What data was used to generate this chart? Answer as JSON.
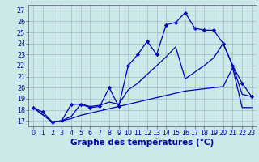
{
  "title": "Graphe des températures (°C)",
  "xlabel_hours": [
    0,
    1,
    2,
    3,
    4,
    5,
    6,
    7,
    8,
    9,
    10,
    11,
    12,
    13,
    14,
    15,
    16,
    17,
    18,
    19,
    20,
    21,
    22,
    23
  ],
  "ylim": [
    16.5,
    27.5
  ],
  "yticks": [
    17,
    18,
    19,
    20,
    21,
    22,
    23,
    24,
    25,
    26,
    27
  ],
  "line1_jagged": {
    "x": [
      0,
      1,
      2,
      3,
      4,
      5,
      6,
      7,
      8,
      9,
      10,
      11,
      12,
      13,
      14,
      15,
      16,
      17,
      18,
      19,
      20,
      21,
      22,
      23
    ],
    "y": [
      18.2,
      17.8,
      16.9,
      17.0,
      18.5,
      18.5,
      18.2,
      18.3,
      20.0,
      18.3,
      22.0,
      23.0,
      24.2,
      23.0,
      25.7,
      25.9,
      26.8,
      25.4,
      25.2,
      25.2,
      24.0,
      22.0,
      20.4,
      19.2
    ],
    "color": "#0000bb",
    "marker": "D",
    "markersize": 2.2,
    "linewidth": 0.9
  },
  "line2_diagonal": {
    "x": [
      0,
      2,
      3,
      4,
      5,
      6,
      7,
      8,
      9,
      10,
      11,
      12,
      13,
      14,
      15,
      16,
      17,
      18,
      19,
      20,
      21,
      22,
      23
    ],
    "y": [
      18.2,
      16.9,
      17.0,
      17.2,
      17.5,
      17.7,
      17.9,
      18.1,
      18.3,
      18.5,
      18.7,
      18.9,
      19.1,
      19.3,
      19.5,
      19.7,
      19.8,
      19.9,
      20.0,
      20.1,
      21.8,
      18.2,
      18.2
    ],
    "color": "#0000bb",
    "marker": null,
    "linewidth": 0.9
  },
  "line3_middle": {
    "x": [
      0,
      2,
      3,
      4,
      5,
      6,
      7,
      8,
      9,
      10,
      11,
      12,
      13,
      14,
      15,
      16,
      17,
      18,
      19,
      20,
      21,
      22,
      23
    ],
    "y": [
      18.2,
      16.9,
      17.0,
      17.4,
      18.5,
      18.3,
      18.4,
      18.7,
      18.5,
      19.8,
      20.4,
      21.2,
      22.0,
      22.8,
      23.7,
      20.8,
      21.4,
      22.0,
      22.7,
      24.0,
      22.0,
      19.4,
      19.2
    ],
    "color": "#0000bb",
    "marker": null,
    "linewidth": 0.9
  },
  "bg_color": "#cce8e8",
  "grid_color": "#8899bb",
  "label_color": "#0000aa",
  "axis_color": "#555577",
  "title_fontsize": 7.5,
  "tick_fontsize": 5.8
}
